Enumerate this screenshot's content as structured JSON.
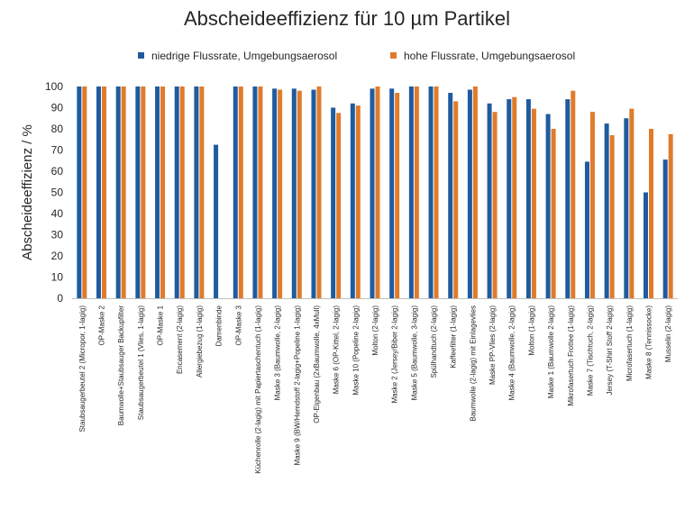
{
  "chart_data": {
    "type": "bar",
    "title": "Abscheideeffizienz für 10 µm Partikel",
    "ylabel": "Abscheideeffizienz / %",
    "xlabel": "",
    "ylim": [
      0,
      100
    ],
    "yticks": [
      0,
      10,
      20,
      30,
      40,
      50,
      60,
      70,
      80,
      90,
      100
    ],
    "grid": false,
    "legend_position": "top",
    "categories": [
      "Staubsaugerbeutel 2 (Micropor, 1-lagig)",
      "OP-Maske 2",
      "Baumwolle+Staubsauger Backupfilter",
      "Staubsaugerbeutel 1 (Vlies, 1-lagig)",
      "OP-Maske 1",
      "Encasement (2-lagig)",
      "Allergiebezug (1-lagig)",
      "Damenbinde",
      "OP-Maske 3",
      "Küchenrolle (2-lagig) mit Papiertaschentuch (1-lagig)",
      "Maske 3 (Baumwolle, 2-lagig)",
      "Maske 9 (BW/Hemdstoff 2-lagig+Popeline 1-lagig)",
      "OP-Eigenbau (2xBaumwolle, 4xMull)",
      "Maske 6 (OP-Kittel, 2-lagig)",
      "Maske 10 (Popeline 2-lagig)",
      "Molton (2-lagig)",
      "Maske 2 (Jersey/Biber 2-lagig)",
      "Maske 5 (Baumwolle, 3-lagig)",
      "Spülhandtuch (2-lagig)",
      "Kaffeefilter (1-lagig)",
      "Baumwolle (2-lagig) mit Einlagevlies",
      "Maske PP-Vlies (2-lagig)",
      "Maske 4 (Baumwolle, 2-lagig)",
      "Molton (1-lagig)",
      "Maske 1 (Baumwolle 2-lagig)",
      "Mikrofasertuch Frottee (1-lagig)",
      "Maske 7 (Tischtuch, 2-lagig)",
      "Jersey (T-Shirt Stoff 2-lagig)",
      "Microfasertuch (1-lagig)",
      "Maske 8 (Tennissocke)",
      "Musselin (2-lagig)"
    ],
    "series": [
      {
        "name": "niedrige Flussrate, Umgebungsaerosol",
        "color": "#1f5b9e",
        "values": [
          100,
          100,
          100,
          100,
          100,
          100,
          100,
          72.5,
          100,
          100,
          99,
          99,
          98.5,
          90,
          92,
          99,
          99,
          100,
          100,
          97,
          98.5,
          92,
          94,
          94,
          87,
          94,
          64.5,
          82.5,
          85,
          50,
          65.5
        ]
      },
      {
        "name": "hohe Flussrate, Umgebungsaerosol",
        "color": "#e07b2c",
        "values": [
          100,
          100,
          100,
          100,
          100,
          100,
          100,
          null,
          100,
          100,
          98.5,
          98,
          100,
          87.5,
          91,
          100,
          97,
          100,
          100,
          93,
          100,
          88,
          95,
          89.5,
          80,
          98,
          88,
          77,
          89.5,
          80,
          77.5
        ]
      }
    ]
  }
}
